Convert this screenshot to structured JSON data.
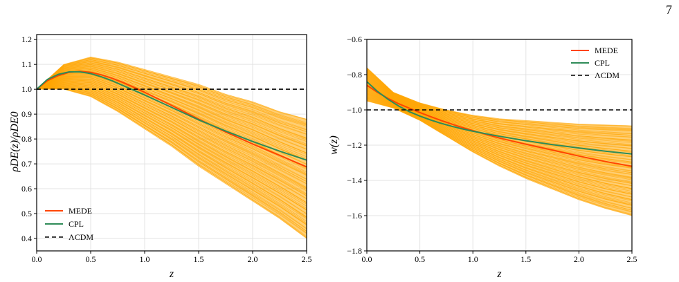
{
  "page": {
    "number": "7"
  },
  "chart_data": [
    {
      "type": "line",
      "xlabel": "z",
      "ylabel": "ρDE(z)/ρDE0",
      "xlim": [
        0.0,
        2.5
      ],
      "ylim": [
        0.35,
        1.22
      ],
      "xticks": [
        "0.0",
        "0.5",
        "1.0",
        "1.5",
        "2.0",
        "2.5"
      ],
      "yticks": [
        "0.4",
        "0.5",
        "0.6",
        "0.7",
        "0.8",
        "0.9",
        "1.0",
        "1.1",
        "1.2"
      ],
      "grid": true,
      "legend_position": "bottom-left",
      "band": {
        "color": "#ffa500",
        "x": [
          0.0,
          0.25,
          0.5,
          0.75,
          1.0,
          1.25,
          1.5,
          1.75,
          2.0,
          2.25,
          2.5
        ],
        "lower": [
          1.0,
          1.0,
          0.97,
          0.91,
          0.84,
          0.77,
          0.69,
          0.62,
          0.55,
          0.48,
          0.4
        ],
        "upper": [
          1.0,
          1.1,
          1.13,
          1.11,
          1.08,
          1.05,
          1.02,
          0.98,
          0.95,
          0.91,
          0.88
        ]
      },
      "series": [
        {
          "name": "MEDE",
          "color": "#ff4500",
          "dash": "",
          "x": [
            0.0,
            0.1,
            0.2,
            0.3,
            0.4,
            0.5,
            0.6,
            0.7,
            0.8,
            0.9,
            1.0,
            1.25,
            1.5,
            1.75,
            2.0,
            2.25,
            2.5
          ],
          "y": [
            1.0,
            1.035,
            1.055,
            1.068,
            1.072,
            1.068,
            1.058,
            1.044,
            1.027,
            1.008,
            0.988,
            0.935,
            0.88,
            0.828,
            0.78,
            0.734,
            0.688
          ]
        },
        {
          "name": "CPL",
          "color": "#2e8b57",
          "dash": "",
          "x": [
            0.0,
            0.1,
            0.2,
            0.3,
            0.4,
            0.5,
            0.6,
            0.7,
            0.8,
            0.9,
            1.0,
            1.25,
            1.5,
            1.75,
            2.0,
            2.25,
            2.5
          ],
          "y": [
            1.0,
            1.04,
            1.06,
            1.07,
            1.07,
            1.063,
            1.05,
            1.034,
            1.015,
            0.996,
            0.977,
            0.927,
            0.877,
            0.832,
            0.79,
            0.751,
            0.715
          ]
        },
        {
          "name": "ΛCDM",
          "color": "#000000",
          "dash": "6,4",
          "x": [
            0.0,
            2.5
          ],
          "y": [
            1.0,
            1.0
          ]
        }
      ]
    },
    {
      "type": "line",
      "xlabel": "z",
      "ylabel": "w(z)",
      "xlim": [
        0.0,
        2.5
      ],
      "ylim": [
        -1.8,
        -0.6
      ],
      "xticks": [
        "0.0",
        "0.5",
        "1.0",
        "1.5",
        "2.0",
        "2.5"
      ],
      "yticks": [
        "−1.8",
        "−1.6",
        "−1.4",
        "−1.2",
        "−1.0",
        "−0.8",
        "−0.6"
      ],
      "grid": true,
      "legend_position": "top-right",
      "band": {
        "color": "#ffa500",
        "x": [
          0.0,
          0.25,
          0.5,
          0.75,
          1.0,
          1.25,
          1.5,
          1.75,
          2.0,
          2.25,
          2.5
        ],
        "lower": [
          -0.95,
          -0.99,
          -1.06,
          -1.15,
          -1.24,
          -1.32,
          -1.39,
          -1.45,
          -1.51,
          -1.56,
          -1.6
        ],
        "upper": [
          -0.76,
          -0.9,
          -0.96,
          -1.0,
          -1.03,
          -1.05,
          -1.06,
          -1.07,
          -1.08,
          -1.085,
          -1.09
        ]
      },
      "series": [
        {
          "name": "MEDE",
          "color": "#ff4500",
          "dash": "",
          "x": [
            0.0,
            0.1,
            0.2,
            0.3,
            0.4,
            0.5,
            0.6,
            0.7,
            0.8,
            0.9,
            1.0,
            1.25,
            1.5,
            1.75,
            2.0,
            2.25,
            2.5
          ],
          "y": [
            -0.86,
            -0.9,
            -0.935,
            -0.965,
            -0.99,
            -1.015,
            -1.038,
            -1.06,
            -1.08,
            -1.1,
            -1.118,
            -1.16,
            -1.195,
            -1.228,
            -1.262,
            -1.293,
            -1.32
          ]
        },
        {
          "name": "CPL",
          "color": "#2e8b57",
          "dash": "",
          "x": [
            0.0,
            0.1,
            0.2,
            0.3,
            0.4,
            0.5,
            0.6,
            0.7,
            0.8,
            0.9,
            1.0,
            1.25,
            1.5,
            1.75,
            2.0,
            2.25,
            2.5
          ],
          "y": [
            -0.84,
            -0.895,
            -0.94,
            -0.978,
            -1.01,
            -1.035,
            -1.057,
            -1.076,
            -1.093,
            -1.108,
            -1.121,
            -1.15,
            -1.175,
            -1.197,
            -1.216,
            -1.234,
            -1.25
          ]
        },
        {
          "name": "ΛCDM",
          "color": "#000000",
          "dash": "6,4",
          "x": [
            0.0,
            2.5
          ],
          "y": [
            -1.0,
            -1.0
          ]
        }
      ]
    }
  ]
}
